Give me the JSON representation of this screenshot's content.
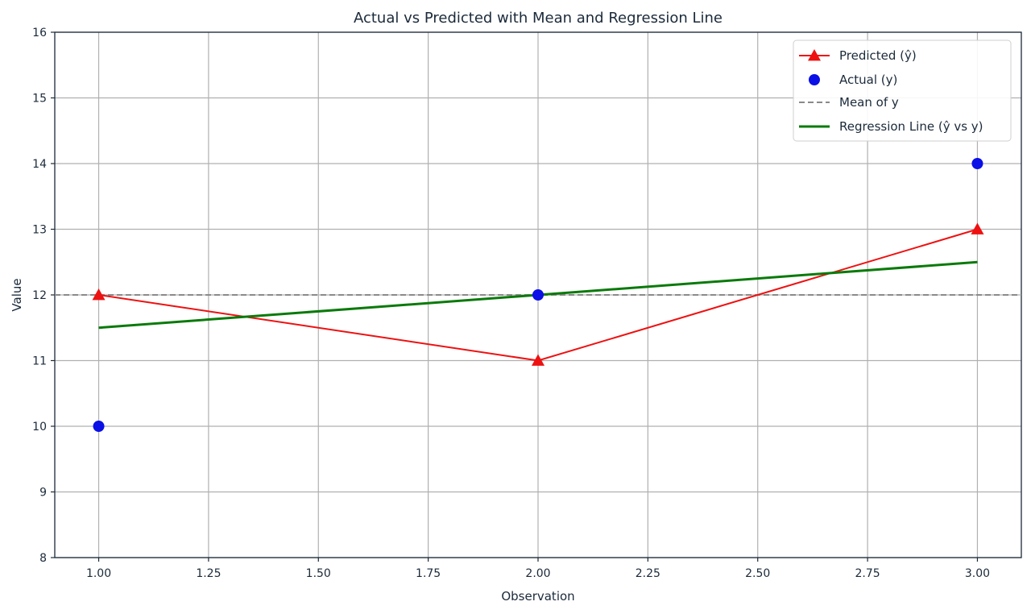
{
  "chart_data": {
    "type": "line",
    "title": "Actual vs Predicted with Mean and Regression Line",
    "xlabel": "Observation",
    "ylabel": "Value",
    "xlim": [
      0.9,
      3.1
    ],
    "ylim": [
      8,
      16
    ],
    "x_ticks": [
      1.0,
      1.25,
      1.5,
      1.75,
      2.0,
      2.25,
      2.5,
      2.75,
      3.0
    ],
    "x_tick_labels": [
      "1.00",
      "1.25",
      "1.50",
      "1.75",
      "2.00",
      "2.25",
      "2.50",
      "2.75",
      "3.00"
    ],
    "y_ticks": [
      8,
      9,
      10,
      11,
      12,
      13,
      14,
      15,
      16
    ],
    "y_tick_labels": [
      "8",
      "9",
      "10",
      "11",
      "12",
      "13",
      "14",
      "15",
      "16"
    ],
    "grid": true,
    "legend_position": "top-right",
    "series": [
      {
        "name": "Predicted (ŷ)",
        "kind": "line-marker",
        "marker": "triangle",
        "color": "#ee1111",
        "x": [
          1,
          2,
          3
        ],
        "y": [
          12,
          11,
          13
        ]
      },
      {
        "name": "Actual (y)",
        "kind": "scatter",
        "marker": "circle",
        "color": "#0a10e6",
        "x": [
          1,
          2,
          3
        ],
        "y": [
          10,
          12,
          14
        ]
      },
      {
        "name": "Mean of y",
        "kind": "hline",
        "style": "dashed",
        "color": "#8a8a8a",
        "y": 12
      },
      {
        "name": "Regression Line (ŷ vs y)",
        "kind": "line",
        "color": "#0a7a0a",
        "x": [
          1,
          3
        ],
        "y": [
          11.5,
          12.5
        ]
      }
    ]
  }
}
